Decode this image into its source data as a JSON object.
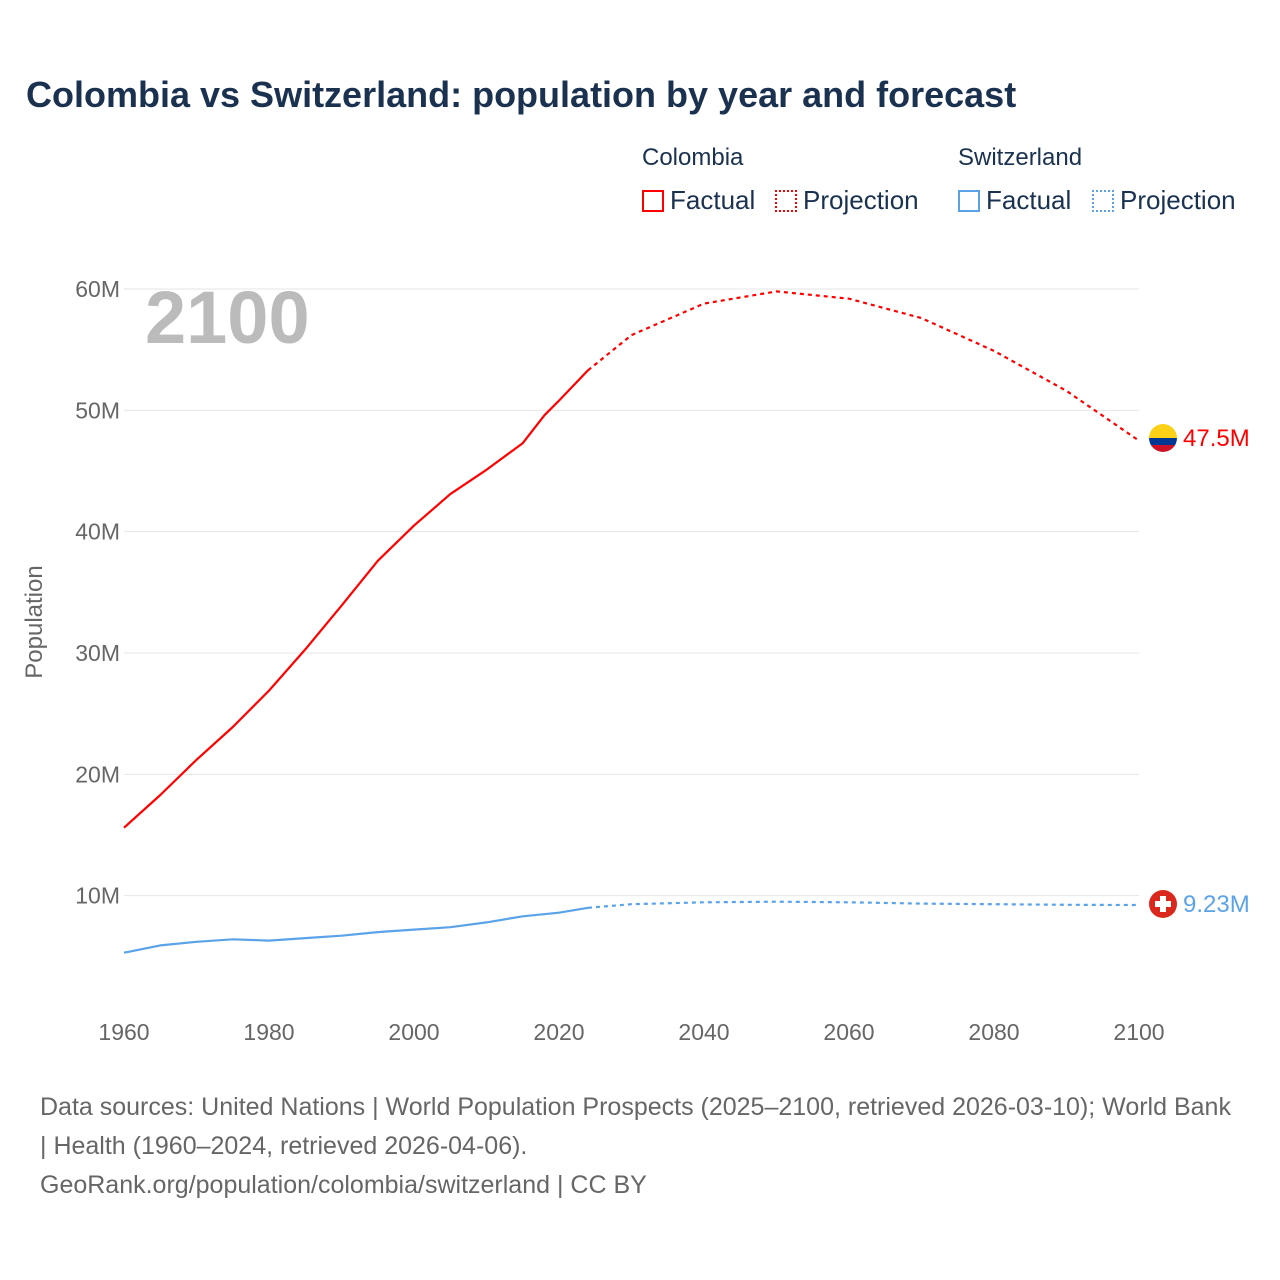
{
  "title": "Colombia vs Switzerland: population by year and forecast",
  "legend": {
    "groups": [
      {
        "name": "Colombia",
        "color": "#ff0000",
        "factual": "Factual",
        "projection": "Projection"
      },
      {
        "name": "Switzerland",
        "color": "#5ba3e8",
        "factual": "Factual",
        "projection": "Projection"
      }
    ]
  },
  "footer": {
    "line1": "Data sources: United Nations | World Population Prospects (2025–2100, retrieved 2026-03-10); World Bank | Health (1960–2024, retrieved 2026-04-06).",
    "line2": "GeoRank.org/population/colombia/switzerland | CC BY"
  },
  "chart_data": {
    "type": "line",
    "year_label": "2100",
    "ylabel": "Population",
    "xlim": [
      1960,
      2100
    ],
    "ylim": [
      0,
      60
    ],
    "x_ticks": [
      "1960",
      "1980",
      "2000",
      "2020",
      "2040",
      "2060",
      "2080",
      "2100"
    ],
    "y_ticks": [
      "10M",
      "20M",
      "30M",
      "40M",
      "50M",
      "60M"
    ],
    "series": [
      {
        "name": "Colombia",
        "color": "#ff0000",
        "end_label": "47.5M",
        "factual": [
          [
            1960,
            15.6
          ],
          [
            1965,
            18.3
          ],
          [
            1970,
            21.2
          ],
          [
            1975,
            23.9
          ],
          [
            1980,
            26.9
          ],
          [
            1985,
            30.3
          ],
          [
            1990,
            33.9
          ],
          [
            1995,
            37.6
          ],
          [
            2000,
            40.5
          ],
          [
            2005,
            43.1
          ],
          [
            2010,
            45.1
          ],
          [
            2015,
            47.3
          ],
          [
            2018,
            49.6
          ],
          [
            2020,
            50.8
          ],
          [
            2024,
            53.3
          ]
        ],
        "projection": [
          [
            2024,
            53.3
          ],
          [
            2030,
            56.2
          ],
          [
            2040,
            58.8
          ],
          [
            2050,
            59.8
          ],
          [
            2060,
            59.2
          ],
          [
            2070,
            57.6
          ],
          [
            2080,
            54.9
          ],
          [
            2090,
            51.6
          ],
          [
            2100,
            47.5
          ]
        ]
      },
      {
        "name": "Switzerland",
        "color": "#5ba3e8",
        "end_label": "9.23M",
        "factual": [
          [
            1960,
            5.3
          ],
          [
            1965,
            5.9
          ],
          [
            1970,
            6.2
          ],
          [
            1975,
            6.4
          ],
          [
            1980,
            6.3
          ],
          [
            1985,
            6.5
          ],
          [
            1990,
            6.7
          ],
          [
            1995,
            7.0
          ],
          [
            2000,
            7.2
          ],
          [
            2005,
            7.4
          ],
          [
            2010,
            7.8
          ],
          [
            2015,
            8.3
          ],
          [
            2020,
            8.6
          ],
          [
            2024,
            9.0
          ]
        ],
        "projection": [
          [
            2024,
            9.0
          ],
          [
            2030,
            9.3
          ],
          [
            2040,
            9.45
          ],
          [
            2050,
            9.5
          ],
          [
            2060,
            9.45
          ],
          [
            2070,
            9.35
          ],
          [
            2080,
            9.3
          ],
          [
            2090,
            9.25
          ],
          [
            2100,
            9.23
          ]
        ]
      }
    ]
  }
}
